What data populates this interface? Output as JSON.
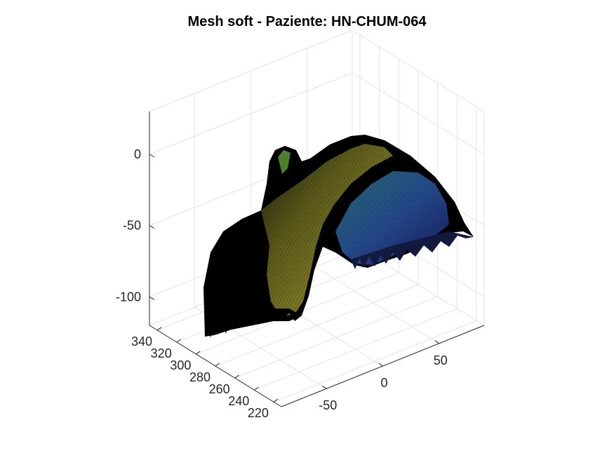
{
  "window": {
    "title": "Mesh soft - Paziente: HN-CHUM-064"
  },
  "chart_data": {
    "type": "surface",
    "title": "Mesh soft - Paziente: HN-CHUM-064",
    "xlabel": "",
    "ylabel": "",
    "zlabel": "",
    "x_axis": {
      "ticks": [
        -50,
        0,
        50
      ],
      "range": [
        -90,
        90
      ]
    },
    "y_axis": {
      "ticks": [
        220,
        240,
        260,
        280,
        300,
        320,
        340
      ],
      "range": [
        212,
        348
      ]
    },
    "z_axis": {
      "ticks": [
        -100,
        -50,
        0
      ],
      "range": [
        -120,
        30
      ]
    },
    "grid": true,
    "colormap": "parula",
    "edge_color": "#000000",
    "view": "3d-oblique"
  }
}
